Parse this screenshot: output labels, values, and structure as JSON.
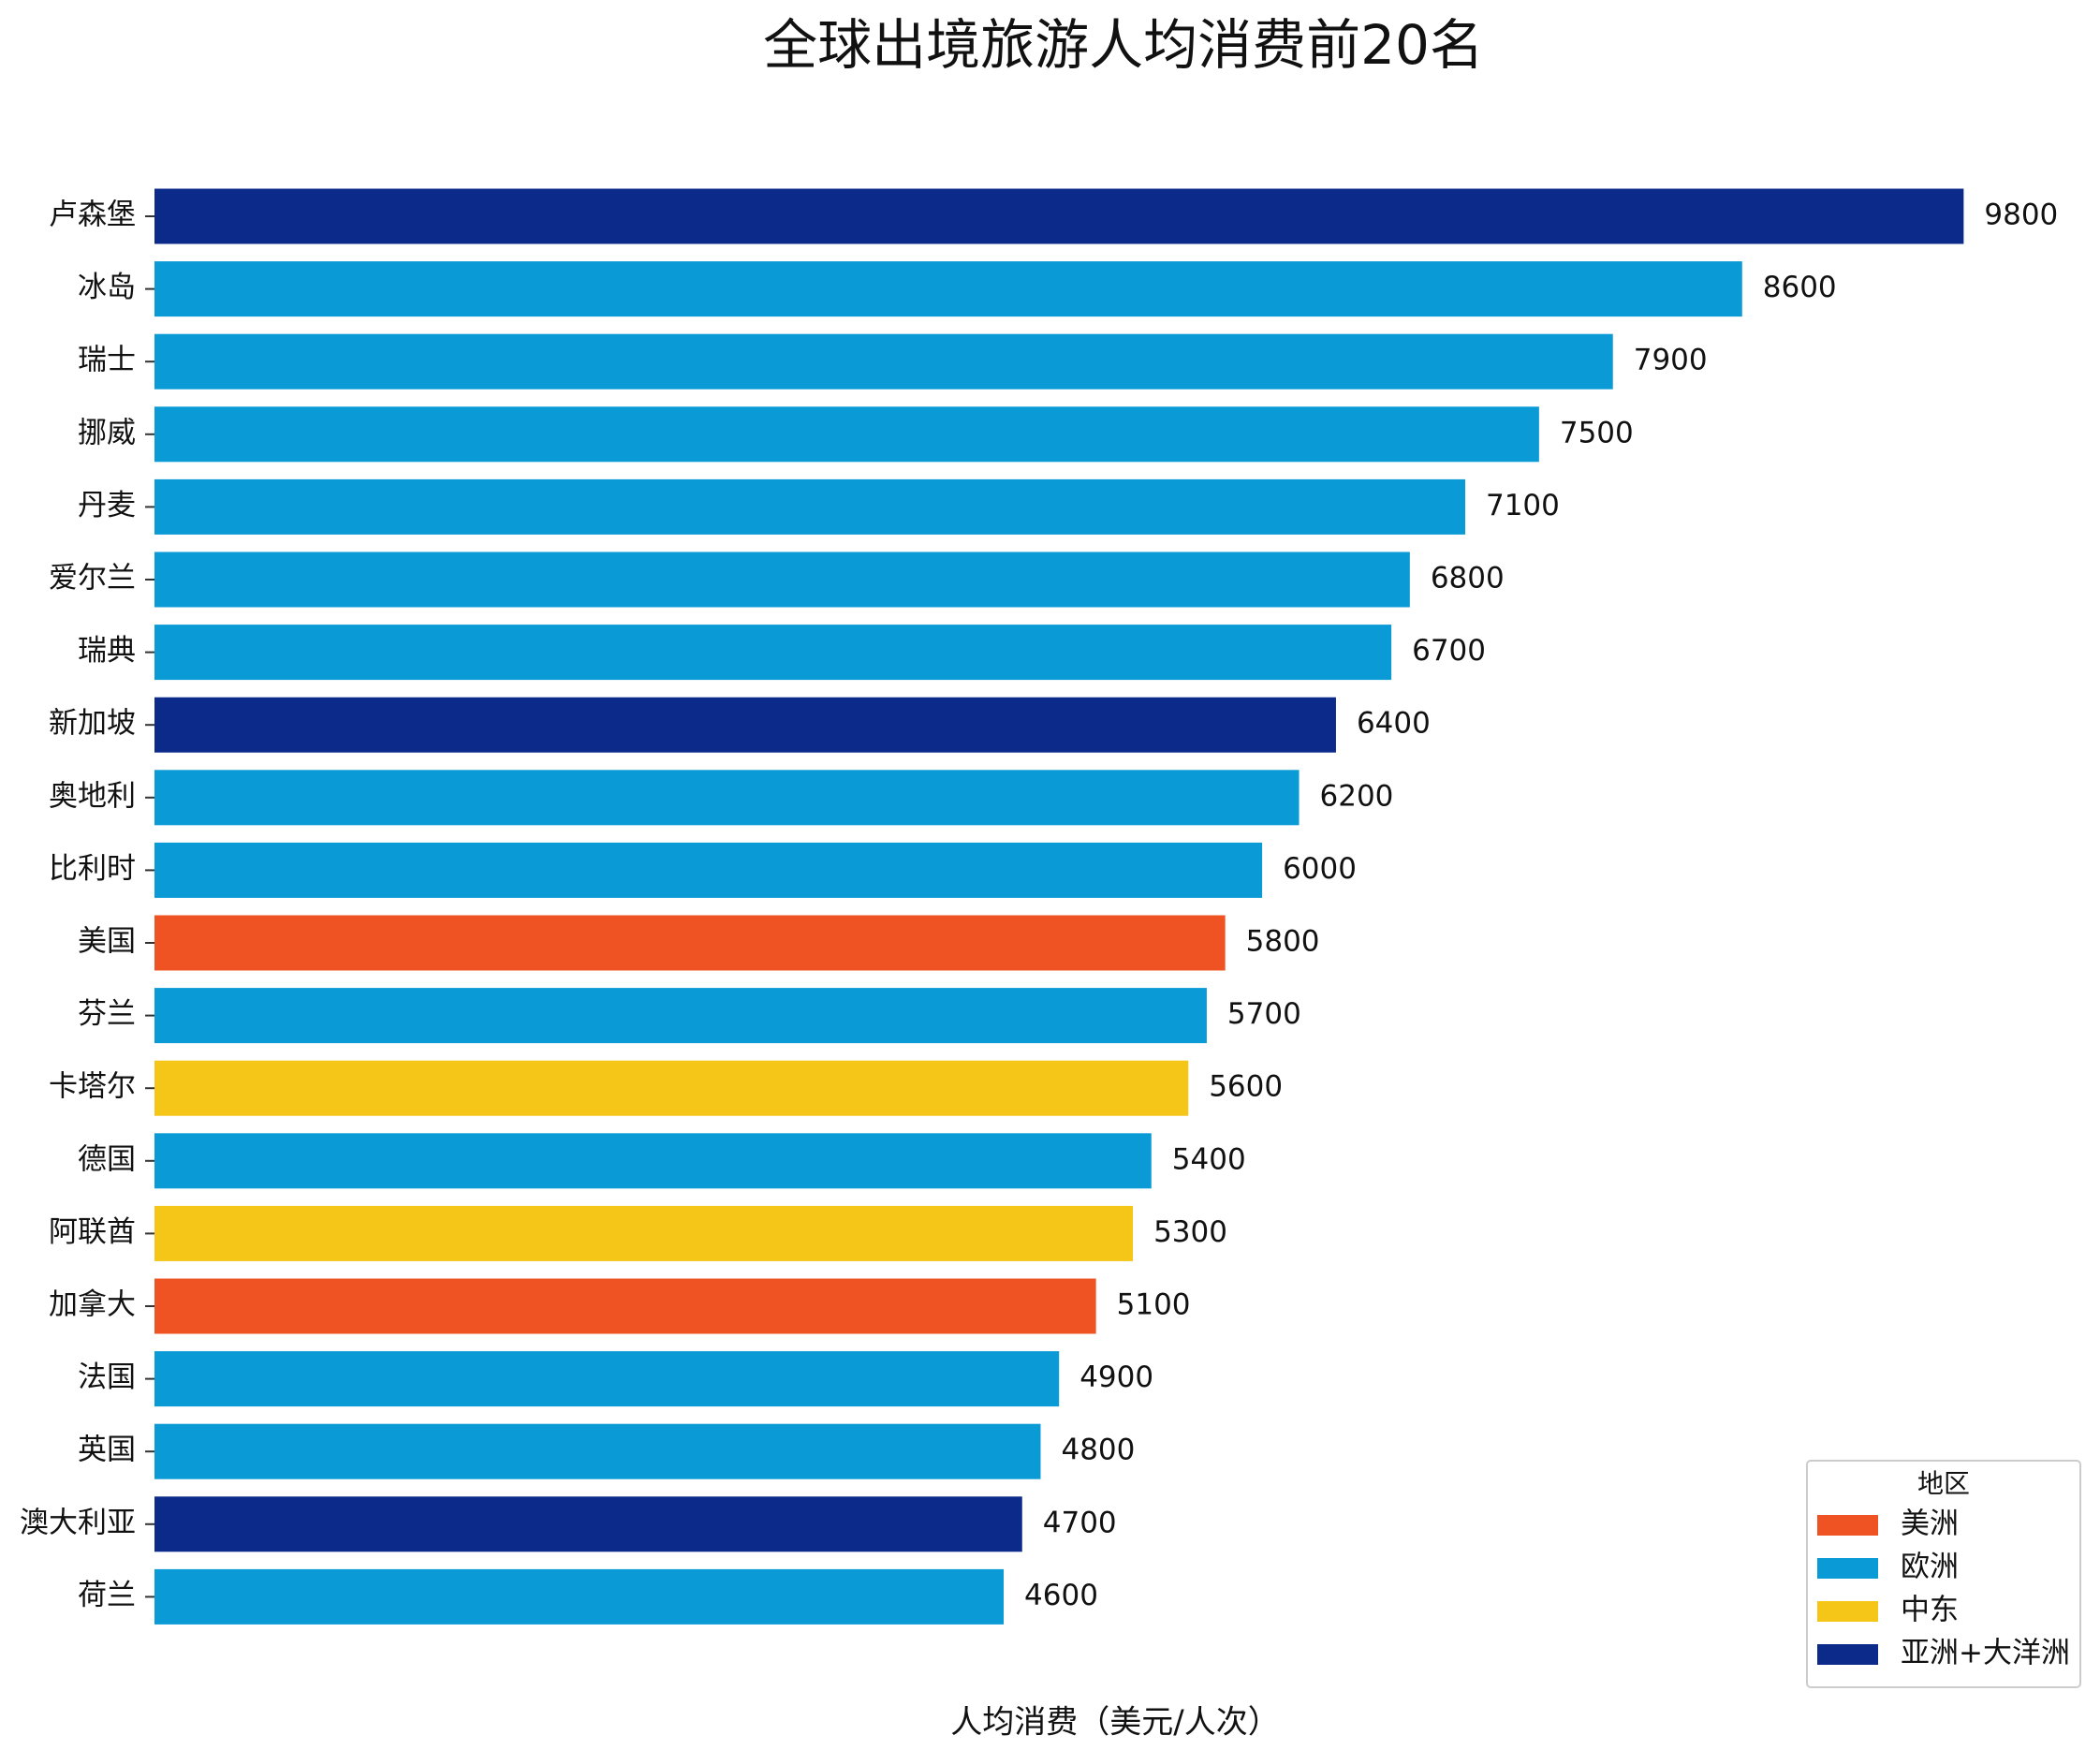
{
  "chart_data": {
    "type": "barh",
    "title": "全球出境旅游人均消费前20名",
    "x_label": "人均消费（美元/人次）",
    "categories": [
      "卢森堡",
      "冰岛",
      "瑞士",
      "挪威",
      "丹麦",
      "爱尔兰",
      "瑞典",
      "新加坡",
      "奥地利",
      "比利时",
      "美国",
      "芬兰",
      "卡塔尔",
      "德国",
      "阿联酋",
      "加拿大",
      "法国",
      "英国",
      "澳大利亚",
      "荷兰"
    ],
    "values": [
      9800,
      8600,
      7900,
      7500,
      7100,
      6800,
      6700,
      6400,
      6200,
      6000,
      5800,
      5700,
      5600,
      5400,
      5300,
      5100,
      4900,
      4800,
      4700,
      4600
    ],
    "colors": [
      "#0b2a8a",
      "#0a9bd6",
      "#0a9bd6",
      "#0a9bd6",
      "#0a9bd6",
      "#0a9bd6",
      "#0a9bd6",
      "#0b2a8a",
      "#0a9bd6",
      "#0a9bd6",
      "#f05323",
      "#0a9bd6",
      "#f5c518",
      "#0a9bd6",
      "#f5c518",
      "#f05323",
      "#0a9bd6",
      "#0a9bd6",
      "#0b2a8a",
      "#0a9bd6"
    ],
    "xlim": [
      0,
      10290
    ],
    "legend": {
      "title": "地区",
      "position": "lower right",
      "entries": [
        {
          "name": "美洲",
          "color": "#f05323"
        },
        {
          "name": "欧洲",
          "color": "#0a9bd6"
        },
        {
          "name": "中东",
          "color": "#f5c518"
        },
        {
          "name": "亚洲+大洋洲",
          "color": "#0b2a8a"
        }
      ]
    }
  }
}
